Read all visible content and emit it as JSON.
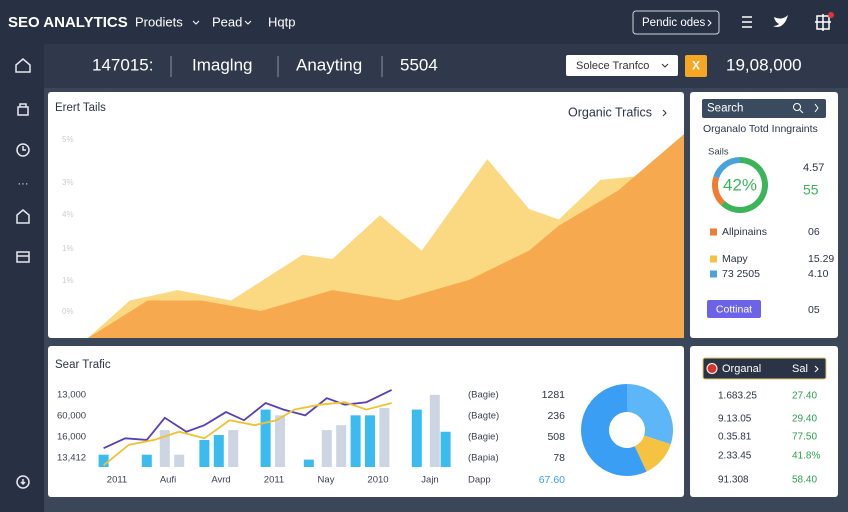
{
  "topbar": {
    "brand": "SEO ANALYTICS",
    "menu": [
      "Prodiets",
      "Pead",
      "Hqtp"
    ],
    "button": "Pendic odes"
  },
  "statsbar": {
    "stats": [
      "147015:",
      "Imaglng",
      "Anayting",
      "5504"
    ],
    "select": "Solece Tranfco",
    "action": "X",
    "total": "19,08,000"
  },
  "traffic_panel": {
    "title": "Erert Tails",
    "link": "Organic Trafics",
    "axis_labels": [
      "5%",
      "3%",
      "4%",
      "1%",
      "1%",
      "0%"
    ],
    "xlim": [
      0,
      100
    ],
    "ylim": [
      0,
      100
    ],
    "series": [
      {
        "color": "#fbd982",
        "x": [
          0,
          7,
          15,
          24,
          36,
          41,
          49,
          56,
          67,
          74,
          79,
          86,
          93,
          100
        ],
        "values": [
          0,
          18,
          23,
          18,
          40,
          38,
          59,
          42,
          86,
          62,
          57,
          76,
          78,
          90
        ]
      },
      {
        "color": "#f7a94f",
        "x": [
          0,
          10,
          19,
          29,
          41,
          52,
          64,
          74,
          79,
          89,
          100
        ],
        "values": [
          0,
          18,
          18,
          13,
          23,
          18,
          28,
          42,
          54,
          71,
          98
        ]
      }
    ]
  },
  "side_panel": {
    "search": "Search",
    "subtitle": "Organalo Totd Inngraints",
    "ring_label": "Sails",
    "ring_value": "42%",
    "ring": {
      "values": [
        62,
        18,
        20
      ],
      "colors": [
        "#3cb55a",
        "#f07b32",
        "#4aa3df"
      ]
    },
    "stats": [
      "4.57",
      "55"
    ],
    "items": [
      {
        "name": "Allpinains",
        "value": "06",
        "color": "#f07b32"
      },
      {
        "name": "Mapy",
        "value": "15.29",
        "color": "#f5c242"
      },
      {
        "name": "73 2505",
        "value": "4.10",
        "color": "#4aa3df"
      }
    ],
    "button": "Cottinat",
    "button_value": "05"
  },
  "search_panel": {
    "title": "Sear Trafic",
    "y_labels": [
      "13,000",
      "60,000",
      "16,000",
      "13,412"
    ],
    "x_labels": [
      "2011",
      "Aufi",
      "Avrd",
      "2011",
      "Nay",
      "2010",
      "Jajn"
    ],
    "xlim": [
      0,
      100
    ],
    "ylim": [
      0,
      100
    ],
    "bars": [
      {
        "color": "#3bbcf0",
        "x": [
          1,
          13,
          29,
          33,
          46,
          58,
          71,
          75,
          88,
          96
        ],
        "values": [
          15,
          15,
          33,
          39,
          70,
          9,
          63,
          63,
          70,
          43
        ]
      },
      {
        "color": "#cdd5e3",
        "x": [
          18,
          22,
          37,
          50,
          63,
          67,
          79,
          93
        ],
        "values": [
          45,
          15,
          45,
          63,
          45,
          51,
          72,
          88
        ]
      }
    ],
    "lines": [
      {
        "color": "#5a3fb5",
        "x": [
          1,
          7,
          13,
          18,
          24,
          29,
          35,
          40,
          46,
          51,
          57,
          63,
          68,
          74,
          81
        ],
        "values": [
          23,
          35,
          33,
          60,
          43,
          51,
          67,
          57,
          78,
          70,
          63,
          84,
          76,
          79,
          94
        ]
      },
      {
        "color": "#f2c230",
        "x": [
          1,
          8,
          15,
          22,
          29,
          36,
          43,
          49,
          54,
          61,
          68,
          74,
          81
        ],
        "values": [
          2,
          27,
          33,
          43,
          35,
          57,
          51,
          57,
          70,
          76,
          79,
          70,
          78
        ]
      }
    ],
    "legend": [
      {
        "name": "(Bagie)",
        "value": "1281"
      },
      {
        "name": "(Bagte)",
        "value": "236"
      },
      {
        "name": "(Bagie)",
        "value": "508"
      },
      {
        "name": "(Bapia)",
        "value": "78"
      }
    ],
    "footer": [
      "Dapp",
      "67.60"
    ],
    "donut": {
      "values": [
        30,
        13,
        57
      ],
      "colors": [
        "#5cb6f7",
        "#f5c242",
        "#3a9ef5"
      ]
    }
  },
  "table_panel": {
    "header": [
      "Organal",
      "Sal"
    ],
    "rows": [
      [
        "1.683.25",
        "27.40"
      ],
      [
        "9.13.05",
        "29.40"
      ],
      [
        "0.35.81",
        "77.50"
      ],
      [
        "2.33.45",
        "41.8%"
      ],
      [
        "91.308",
        "58.40"
      ]
    ]
  }
}
